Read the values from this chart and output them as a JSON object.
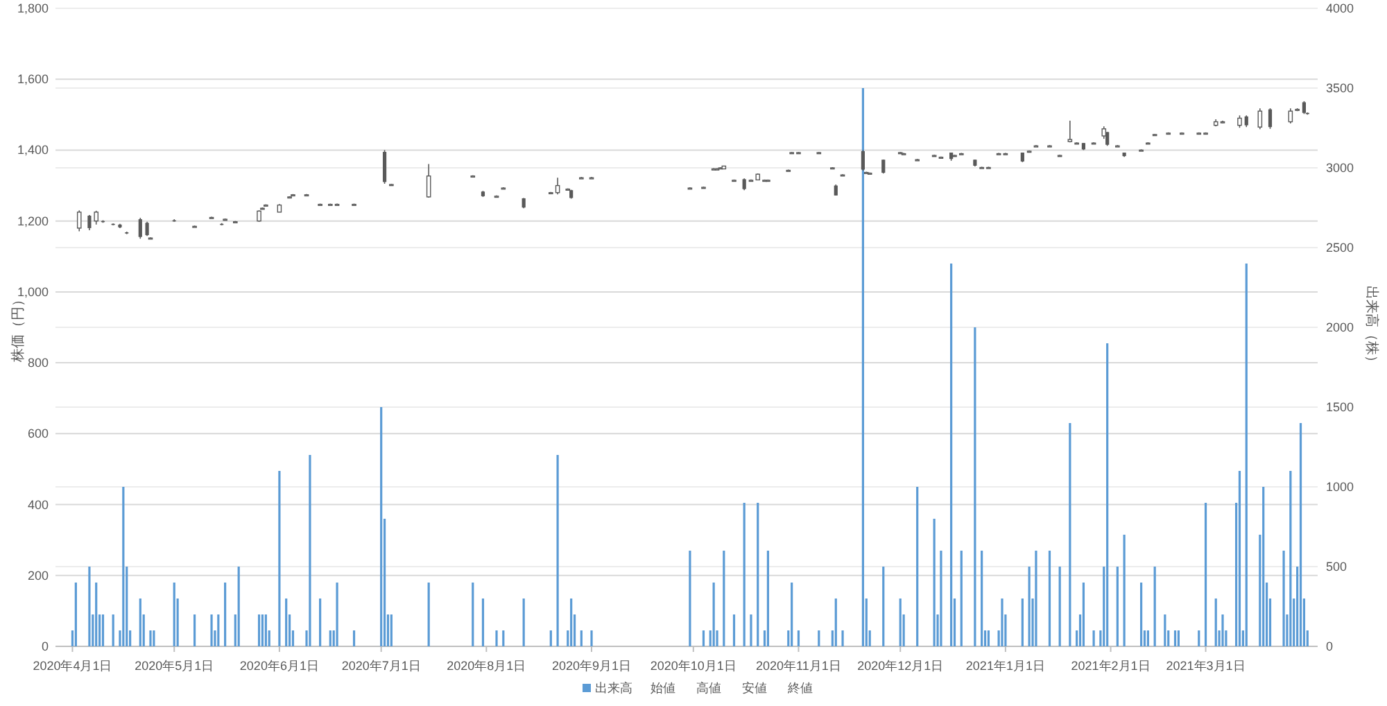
{
  "chart_data": {
    "type": "candlestick",
    "ylabel": "株価（円）",
    "y2label": "出来高（株）",
    "xlim": [
      "2020-03-27",
      "2021-04-03"
    ],
    "xticks": [
      {
        "value": "2020-04-01",
        "label": "2020年4月1日"
      },
      {
        "value": "2020-05-01",
        "label": "2020年5月1日"
      },
      {
        "value": "2020-06-01",
        "label": "2020年6月1日"
      },
      {
        "value": "2020-07-01",
        "label": "2020年7月1日"
      },
      {
        "value": "2020-08-01",
        "label": "2020年8月1日"
      },
      {
        "value": "2020-09-01",
        "label": "2020年9月1日"
      },
      {
        "value": "2020-10-01",
        "label": "2020年10月1日"
      },
      {
        "value": "2020-11-01",
        "label": "2020年11月1日"
      },
      {
        "value": "2020-12-01",
        "label": "2020年12月1日"
      },
      {
        "value": "2021-01-01",
        "label": "2021年1月1日"
      },
      {
        "value": "2021-02-01",
        "label": "2021年2月1日"
      },
      {
        "value": "2021-03-01",
        "label": "2021年3月1日"
      }
    ],
    "ylim": [
      0,
      1800
    ],
    "yticks": [
      0,
      200,
      400,
      600,
      800,
      {
        "value": 1000,
        "label": "1,000"
      },
      {
        "value": 1200,
        "label": "1,200"
      },
      {
        "value": 1400,
        "label": "1,400"
      },
      {
        "value": 1600,
        "label": "1,600"
      },
      {
        "value": 1800,
        "label": "1,800"
      }
    ],
    "y2lim": [
      0,
      4000
    ],
    "y2ticks": [
      0,
      500,
      1000,
      1500,
      2000,
      2500,
      3000,
      3500,
      4000
    ],
    "grid": true,
    "legend": "bottom",
    "annotations": [
      "始値",
      "高値",
      "安値",
      "終値"
    ],
    "series": [
      {
        "name": "出来高",
        "type": "bar",
        "axis": "y2",
        "color": "#5b9bd5",
        "x": [
          "2020-04-01",
          "2020-04-02",
          "2020-04-06",
          "2020-04-07",
          "2020-04-08",
          "2020-04-09",
          "2020-04-10",
          "2020-04-13",
          "2020-04-15",
          "2020-04-16",
          "2020-04-17",
          "2020-04-18",
          "2020-04-21",
          "2020-04-22",
          "2020-04-24",
          "2020-04-25",
          "2020-05-01",
          "2020-05-02",
          "2020-05-07",
          "2020-05-12",
          "2020-05-13",
          "2020-05-14",
          "2020-05-16",
          "2020-05-19",
          "2020-05-20",
          "2020-05-26",
          "2020-05-27",
          "2020-05-28",
          "2020-05-29",
          "2020-06-01",
          "2020-06-03",
          "2020-06-04",
          "2020-06-05",
          "2020-06-09",
          "2020-06-10",
          "2020-06-13",
          "2020-06-16",
          "2020-06-17",
          "2020-06-18",
          "2020-06-23",
          "2020-07-01",
          "2020-07-02",
          "2020-07-03",
          "2020-07-04",
          "2020-07-15",
          "2020-07-28",
          "2020-07-31",
          "2020-08-04",
          "2020-08-06",
          "2020-08-12",
          "2020-08-20",
          "2020-08-22",
          "2020-08-25",
          "2020-08-26",
          "2020-08-27",
          "2020-08-29",
          "2020-09-01",
          "2020-09-30",
          "2020-10-04",
          "2020-10-06",
          "2020-10-07",
          "2020-10-08",
          "2020-10-10",
          "2020-10-13",
          "2020-10-16",
          "2020-10-18",
          "2020-10-20",
          "2020-10-22",
          "2020-10-23",
          "2020-10-29",
          "2020-10-30",
          "2020-11-01",
          "2020-11-07",
          "2020-11-11",
          "2020-11-12",
          "2020-11-14",
          "2020-11-20",
          "2020-11-21",
          "2020-11-22",
          "2020-11-26",
          "2020-12-01",
          "2020-12-02",
          "2020-12-06",
          "2020-12-11",
          "2020-12-12",
          "2020-12-13",
          "2020-12-16",
          "2020-12-17",
          "2020-12-19",
          "2020-12-23",
          "2020-12-25",
          "2020-12-26",
          "2020-12-27",
          "2020-12-30",
          "2020-12-31",
          "2021-01-01",
          "2021-01-06",
          "2021-01-08",
          "2021-01-09",
          "2021-01-10",
          "2021-01-14",
          "2021-01-17",
          "2021-01-20",
          "2021-01-22",
          "2021-01-23",
          "2021-01-24",
          "2021-01-27",
          "2021-01-29",
          "2021-01-30",
          "2021-01-31",
          "2021-02-03",
          "2021-02-05",
          "2021-02-10",
          "2021-02-11",
          "2021-02-12",
          "2021-02-14",
          "2021-02-17",
          "2021-02-18",
          "2021-02-20",
          "2021-02-21",
          "2021-02-27",
          "2021-03-01",
          "2021-03-04",
          "2021-03-05",
          "2021-03-06",
          "2021-03-07",
          "2021-03-10",
          "2021-03-11",
          "2021-03-12",
          "2021-03-13",
          "2021-03-17",
          "2021-03-18",
          "2021-03-19",
          "2021-03-20",
          "2021-03-24",
          "2021-03-25",
          "2021-03-26",
          "2021-03-27",
          "2021-03-28",
          "2021-03-29",
          "2021-03-30",
          "2021-03-31"
        ],
        "values": [
          100,
          400,
          500,
          200,
          400,
          200,
          200,
          200,
          100,
          1000,
          500,
          100,
          300,
          200,
          100,
          100,
          400,
          300,
          200,
          200,
          100,
          200,
          400,
          200,
          500,
          200,
          200,
          200,
          100,
          1100,
          300,
          200,
          100,
          100,
          1200,
          300,
          100,
          100,
          400,
          100,
          1500,
          800,
          200,
          200,
          400,
          400,
          300,
          100,
          100,
          300,
          100,
          1200,
          100,
          300,
          200,
          100,
          100,
          600,
          100,
          100,
          400,
          100,
          600,
          200,
          900,
          200,
          900,
          100,
          600,
          100,
          400,
          100,
          100,
          100,
          300,
          100,
          3500,
          300,
          100,
          500,
          300,
          200,
          1000,
          800,
          200,
          600,
          2400,
          300,
          600,
          2000,
          600,
          100,
          100,
          100,
          300,
          200,
          300,
          500,
          300,
          600,
          600,
          500,
          1400,
          100,
          200,
          400,
          100,
          100,
          500,
          1900,
          500,
          700,
          400,
          100,
          100,
          500,
          200,
          100,
          100,
          100,
          100,
          900,
          300,
          100,
          200,
          100,
          900,
          1100,
          100,
          2400,
          700,
          1000,
          400,
          300,
          600,
          200,
          1100,
          300,
          500,
          1400,
          300,
          100
        ]
      },
      {
        "color": "#595959",
        "x": [
          "2020-04-03",
          "2020-04-06",
          "2020-04-08",
          "2020-04-10",
          "2020-04-13",
          "2020-04-15",
          "2020-04-17",
          "2020-04-21",
          "2020-04-23",
          "2020-04-24",
          "2020-05-01",
          "2020-05-07",
          "2020-05-12",
          "2020-05-15",
          "2020-05-16",
          "2020-05-19",
          "2020-05-26",
          "2020-05-27",
          "2020-05-28",
          "2020-06-01",
          "2020-06-04",
          "2020-06-05",
          "2020-06-09",
          "2020-06-13",
          "2020-06-16",
          "2020-06-18",
          "2020-06-23",
          "2020-07-02",
          "2020-07-04",
          "2020-07-15",
          "2020-07-28",
          "2020-07-31",
          "2020-08-04",
          "2020-08-06",
          "2020-08-12",
          "2020-08-20",
          "2020-08-22",
          "2020-08-25",
          "2020-08-26",
          "2020-08-29",
          "2020-09-01",
          "2020-09-30",
          "2020-10-04",
          "2020-10-07",
          "2020-10-08",
          "2020-10-09",
          "2020-10-10",
          "2020-10-13",
          "2020-10-16",
          "2020-10-18",
          "2020-10-20",
          "2020-10-22",
          "2020-10-23",
          "2020-10-29",
          "2020-10-30",
          "2020-11-01",
          "2020-11-07",
          "2020-11-11",
          "2020-11-12",
          "2020-11-14",
          "2020-11-20",
          "2020-11-21",
          "2020-11-22",
          "2020-11-26",
          "2020-12-01",
          "2020-12-02",
          "2020-12-06",
          "2020-12-11",
          "2020-12-13",
          "2020-12-16",
          "2020-12-17",
          "2020-12-19",
          "2020-12-23",
          "2020-12-25",
          "2020-12-27",
          "2020-12-30",
          "2021-01-01",
          "2021-01-06",
          "2021-01-08",
          "2021-01-10",
          "2021-01-14",
          "2021-01-17",
          "2021-01-20",
          "2021-01-22",
          "2021-01-24",
          "2021-01-27",
          "2021-01-30",
          "2021-01-31",
          "2021-02-03",
          "2021-02-05",
          "2021-02-10",
          "2021-02-12",
          "2021-02-14",
          "2021-02-18",
          "2021-02-22",
          "2021-02-27",
          "2021-03-01",
          "2021-03-04",
          "2021-03-06",
          "2021-03-11",
          "2021-03-13",
          "2021-03-17",
          "2021-03-20",
          "2021-03-26",
          "2021-03-28",
          "2021-03-30",
          "2021-03-31"
        ],
        "ohlc": [
          [
            1180,
            1230,
            1171,
            1225
          ],
          [
            1215,
            1217,
            1174,
            1180
          ],
          [
            1200,
            1229,
            1190,
            1225
          ],
          [
            1200,
            1202,
            1195,
            1198
          ],
          [
            1192,
            1193,
            1188,
            1190
          ],
          [
            1190,
            1192,
            1180,
            1182
          ],
          [
            1168,
            1170,
            1163,
            1166
          ],
          [
            1205,
            1209,
            1150,
            1155
          ],
          [
            1195,
            1198,
            1158,
            1160
          ],
          [
            1152,
            1154,
            1150,
            1152
          ],
          [
            1202,
            1205,
            1198,
            1200
          ],
          [
            1185,
            1187,
            1183,
            1185
          ],
          [
            1210,
            1212,
            1207,
            1210
          ],
          [
            1192,
            1194,
            1188,
            1190
          ],
          [
            1205,
            1207,
            1202,
            1205
          ],
          [
            1198,
            1200,
            1196,
            1198
          ],
          [
            1200,
            1230,
            1198,
            1228
          ],
          [
            1236,
            1238,
            1233,
            1236
          ],
          [
            1245,
            1247,
            1242,
            1245
          ],
          [
            1225,
            1248,
            1225,
            1245
          ],
          [
            1268,
            1270,
            1265,
            1268
          ],
          [
            1274,
            1276,
            1272,
            1274
          ],
          [
            1274,
            1276,
            1272,
            1274
          ],
          [
            1247,
            1249,
            1245,
            1247
          ],
          [
            1247,
            1249,
            1245,
            1247
          ],
          [
            1247,
            1249,
            1245,
            1247
          ],
          [
            1247,
            1249,
            1245,
            1247
          ],
          [
            1395,
            1400,
            1305,
            1310
          ],
          [
            1303,
            1305,
            1300,
            1303
          ],
          [
            1268,
            1361,
            1266,
            1327
          ],
          [
            1327,
            1329,
            1325,
            1327
          ],
          [
            1283,
            1285,
            1268,
            1270
          ],
          [
            1270,
            1272,
            1268,
            1270
          ],
          [
            1293,
            1295,
            1291,
            1293
          ],
          [
            1264,
            1265,
            1236,
            1238
          ],
          [
            1280,
            1282,
            1278,
            1280
          ],
          [
            1280,
            1322,
            1275,
            1300
          ],
          [
            1290,
            1292,
            1288,
            1290
          ],
          [
            1287,
            1288,
            1263,
            1265
          ],
          [
            1322,
            1324,
            1320,
            1322
          ],
          [
            1322,
            1324,
            1320,
            1322
          ],
          [
            1293,
            1295,
            1291,
            1293
          ],
          [
            1295,
            1297,
            1293,
            1295
          ],
          [
            1347,
            1349,
            1345,
            1347
          ],
          [
            1347,
            1349,
            1345,
            1347
          ],
          [
            1350,
            1352,
            1348,
            1350
          ],
          [
            1347,
            1356,
            1347,
            1355
          ],
          [
            1315,
            1317,
            1313,
            1315
          ],
          [
            1318,
            1320,
            1287,
            1290
          ],
          [
            1315,
            1317,
            1313,
            1315
          ],
          [
            1316,
            1334,
            1315,
            1332
          ],
          [
            1315,
            1317,
            1313,
            1315
          ],
          [
            1315,
            1317,
            1313,
            1315
          ],
          [
            1343,
            1345,
            1341,
            1343
          ],
          [
            1393,
            1395,
            1391,
            1393
          ],
          [
            1393,
            1395,
            1391,
            1393
          ],
          [
            1393,
            1395,
            1391,
            1393
          ],
          [
            1350,
            1352,
            1348,
            1350
          ],
          [
            1300,
            1303,
            1272,
            1272
          ],
          [
            1330,
            1332,
            1328,
            1330
          ],
          [
            1397,
            1400,
            1342,
            1345
          ],
          [
            1337,
            1339,
            1335,
            1337
          ],
          [
            1335,
            1337,
            1333,
            1335
          ],
          [
            1373,
            1373,
            1334,
            1336
          ],
          [
            1393,
            1395,
            1391,
            1393
          ],
          [
            1390,
            1392,
            1388,
            1390
          ],
          [
            1373,
            1375,
            1371,
            1373
          ],
          [
            1385,
            1387,
            1383,
            1385
          ],
          [
            1380,
            1382,
            1378,
            1380
          ],
          [
            1393,
            1393,
            1370,
            1375
          ],
          [
            1385,
            1387,
            1383,
            1385
          ],
          [
            1390,
            1392,
            1388,
            1390
          ],
          [
            1373,
            1373,
            1354,
            1356
          ],
          [
            1351,
            1353,
            1349,
            1351
          ],
          [
            1351,
            1353,
            1349,
            1351
          ],
          [
            1390,
            1392,
            1388,
            1390
          ],
          [
            1390,
            1392,
            1388,
            1390
          ],
          [
            1393,
            1393,
            1366,
            1368
          ],
          [
            1397,
            1399,
            1395,
            1397
          ],
          [
            1412,
            1414,
            1410,
            1412
          ],
          [
            1412,
            1414,
            1410,
            1412
          ],
          [
            1385,
            1387,
            1383,
            1385
          ],
          [
            1424,
            1483,
            1422,
            1430
          ],
          [
            1420,
            1422,
            1418,
            1420
          ],
          [
            1420,
            1420,
            1400,
            1402
          ],
          [
            1420,
            1422,
            1418,
            1420
          ],
          [
            1440,
            1467,
            1432,
            1460
          ],
          [
            1451,
            1451,
            1412,
            1415
          ],
          [
            1412,
            1414,
            1410,
            1412
          ],
          [
            1393,
            1393,
            1381,
            1383
          ],
          [
            1400,
            1402,
            1398,
            1400
          ],
          [
            1420,
            1422,
            1418,
            1420
          ],
          [
            1444,
            1446,
            1442,
            1444
          ],
          [
            1448,
            1450,
            1446,
            1448
          ],
          [
            1448,
            1450,
            1446,
            1448
          ],
          [
            1448,
            1450,
            1446,
            1448
          ],
          [
            1448,
            1450,
            1446,
            1448
          ],
          [
            1470,
            1487,
            1467,
            1480
          ],
          [
            1480,
            1483,
            1475,
            1480
          ],
          [
            1470,
            1498,
            1463,
            1490
          ],
          [
            1495,
            1498,
            1465,
            1470
          ],
          [
            1465,
            1518,
            1459,
            1510
          ],
          [
            1515,
            1518,
            1460,
            1465
          ],
          [
            1480,
            1518,
            1475,
            1510
          ],
          [
            1515,
            1518,
            1510,
            1515
          ],
          [
            1535,
            1538,
            1502,
            1505
          ],
          [
            1505,
            1506,
            1500,
            1502
          ]
        ]
      }
    ]
  }
}
